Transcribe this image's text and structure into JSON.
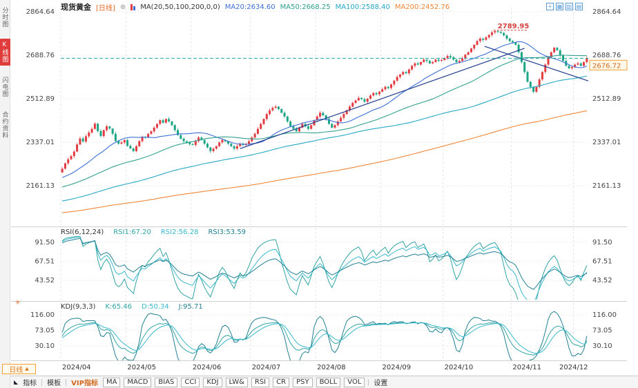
{
  "header": {
    "symbol": "现货黄金",
    "period_label": "[日线]",
    "add_icon": "⊕",
    "ma_settings": "MA(20,50,100,200,0,0)",
    "ma_values": [
      {
        "label": "MA20:2634.60"
      },
      {
        "label": "MA50:2668.25"
      },
      {
        "label": "MA100:2588.40"
      },
      {
        "label": "MA200:2452.76"
      }
    ],
    "window_icons": [
      {
        "name": "layout-add-icon",
        "glyph": "＋"
      },
      {
        "name": "layout-grid-icon",
        "glyph": "▦"
      },
      {
        "name": "layout-columns-icon",
        "glyph": "▥"
      },
      {
        "name": "layout-rows-icon",
        "glyph": "▤"
      }
    ]
  },
  "sidebar": {
    "tabs": [
      {
        "label": "分时图",
        "active": false
      },
      {
        "label": "K线图",
        "active": true
      },
      {
        "label": "闪电图",
        "active": false
      },
      {
        "label": "合约资料",
        "active": false
      }
    ]
  },
  "panels": {
    "rsi": {
      "title": "RSI(6,12,24)",
      "values": [
        {
          "label": "RSI1:67.20"
        },
        {
          "label": "RSI2:56.28"
        },
        {
          "label": "RSI3:53.59"
        }
      ],
      "ticks": [
        "91.50",
        "67.51",
        "43.52"
      ]
    },
    "kdj": {
      "title": "KDJ(9,3,3)",
      "values": [
        {
          "label": "K:65.46"
        },
        {
          "label": "D:50.34"
        },
        {
          "label": "J:95.71"
        }
      ],
      "ticks": [
        "116.00",
        "73.05",
        "30.10"
      ],
      "settings_icon": "✳"
    }
  },
  "period_selector": {
    "label": "日线",
    "arrow": "▲"
  },
  "toolbar": {
    "menu_icon": "◣",
    "menu_items": [
      {
        "label": "指标"
      },
      {
        "label": "模板"
      },
      {
        "label": "VIP指标"
      }
    ],
    "indicator_buttons": [
      "MA",
      "MACD",
      "BIAS",
      "CCI",
      "KDJ",
      "LW&",
      "RSI",
      "CR",
      "PSY",
      "BOLL",
      "VOL"
    ],
    "settings_label": "设置"
  },
  "colors": {
    "up": "#E23B41",
    "down": "#1CA584",
    "ma20": "#3C6FD6",
    "ma50": "#2FA08F",
    "ma100": "#25A8C4",
    "ma200": "#F08636",
    "rsi1": "#2FA3A3",
    "rsi2": "#38B8CC",
    "rsi3": "#1F7F92",
    "kdj_k": "#2FA3A3",
    "kdj_d": "#38B8CC",
    "kdj_j": "#1F7F92",
    "price_line": "#1CA5A5",
    "high_annotation": "#D64040",
    "accent_orange": "#F0A030",
    "period": "#E8641E",
    "vip": "#D2691E",
    "tab_active_bg": "#E03C3C"
  },
  "chart_data": {
    "type": "candlestick",
    "title": "现货黄金 [日线]",
    "x_labels": [
      "2024/04",
      "2024/05",
      "2024/06",
      "2024/07",
      "2024/08",
      "2024/09",
      "2024/10",
      "2024/11",
      "2024/12"
    ],
    "month_start_indices": [
      0,
      22,
      44,
      64,
      86,
      108,
      129,
      152,
      173
    ],
    "main_ticks": [
      "2864.64",
      "2688.76",
      "2512.89",
      "2337.01",
      "2161.13"
    ],
    "last_price": {
      "value": 2676.72,
      "label": "2676.72"
    },
    "high_point": {
      "index": 146,
      "value": 2789.95,
      "label": "2789.95"
    },
    "ma_periods": [
      20,
      50,
      100,
      200
    ],
    "rsi_periods": [
      6,
      12,
      24
    ],
    "kdj_params": [
      9,
      3,
      3
    ],
    "trendlines": [
      {
        "i1": 60,
        "p1": 2311,
        "i2": 156,
        "p2": 2717
      },
      {
        "i1": 142.5,
        "p1": 2725,
        "i2": 177.5,
        "p2": 2585
      }
    ],
    "closes": [
      2230,
      2252,
      2268,
      2281,
      2299,
      2328,
      2352,
      2340,
      2361,
      2376,
      2391,
      2412,
      2382,
      2362,
      2386,
      2401,
      2392,
      2371,
      2342,
      2331,
      2336,
      2346,
      2322,
      2312,
      2301,
      2321,
      2341,
      2359,
      2356,
      2371,
      2381,
      2396,
      2411,
      2426,
      2416,
      2431,
      2421,
      2406,
      2386,
      2366,
      2351,
      2341,
      2336,
      2329,
      2326,
      2341,
      2356,
      2346,
      2331,
      2316,
      2301,
      2311,
      2321,
      2336,
      2346,
      2341,
      2331,
      2321,
      2311,
      2321,
      2331,
      2326,
      2331,
      2341,
      2356,
      2371,
      2391,
      2411,
      2431,
      2451,
      2466,
      2476,
      2481,
      2471,
      2456,
      2441,
      2421,
      2401,
      2391,
      2381,
      2396,
      2411,
      2401,
      2391,
      2406,
      2426,
      2441,
      2456,
      2446,
      2431,
      2411,
      2396,
      2406,
      2421,
      2436,
      2451,
      2466,
      2481,
      2496,
      2506,
      2516,
      2511,
      2501,
      2513,
      2526,
      2536,
      2531,
      2541,
      2551,
      2561,
      2556,
      2571,
      2586,
      2601,
      2611,
      2621,
      2616,
      2631,
      2646,
      2656,
      2651,
      2661,
      2671,
      2666,
      2656,
      2661,
      2671,
      2666,
      2669,
      2676,
      2686,
      2681,
      2671,
      2661,
      2666,
      2676,
      2691,
      2701,
      2716,
      2731,
      2746,
      2756,
      2751,
      2761,
      2771,
      2781,
      2786,
      2783,
      2779,
      2769,
      2756,
      2746,
      2741,
      2731,
      2701,
      2661,
      2621,
      2581,
      2561,
      2541,
      2561,
      2591,
      2621,
      2651,
      2681,
      2701,
      2719,
      2709,
      2689,
      2666,
      2646,
      2636,
      2641,
      2651,
      2656,
      2646,
      2661,
      2676.72
    ]
  }
}
